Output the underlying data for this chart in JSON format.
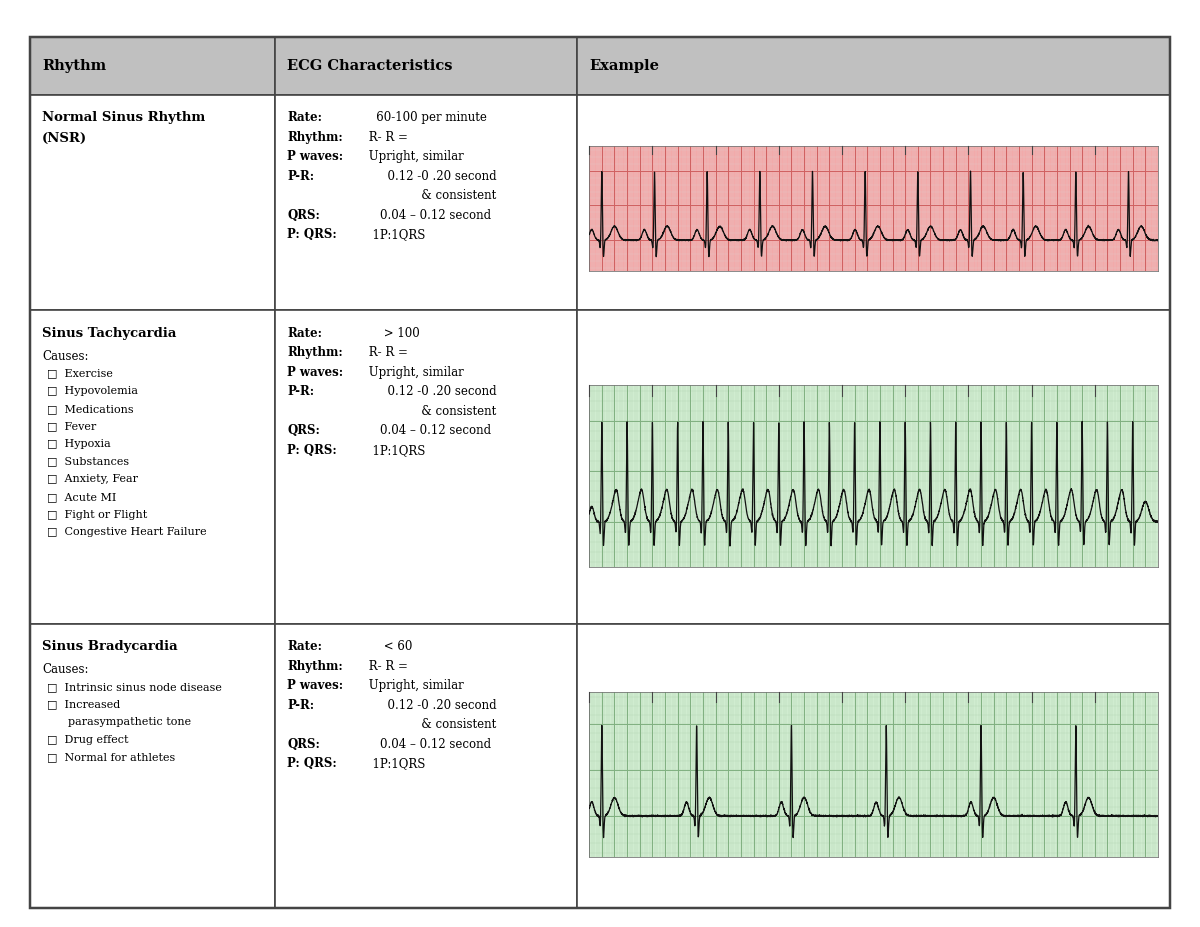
{
  "header_bg": "#c0c0c0",
  "header_text_color": "#000000",
  "col_headers": [
    "Rhythm",
    "ECG Characteristics",
    "Example"
  ],
  "table_border_color": "#444444",
  "rows": [
    {
      "rhythm_title": "Normal Sinus Rhythm\n(NSR)",
      "char_lines": [
        {
          "label": "Rate:",
          "label_bold": true,
          "value": "   60-100 per minute",
          "indent": false
        },
        {
          "label": "Rhythm:",
          "label_bold": true,
          "value": " R- R =",
          "indent": false
        },
        {
          "label": "P waves:",
          "label_bold": true,
          "value": " Upright, similar",
          "indent": false
        },
        {
          "label": "P-R:",
          "label_bold": true,
          "value": "      0.12 -0 .20 second",
          "indent": false
        },
        {
          "label": "",
          "label_bold": false,
          "value": "               & consistent",
          "indent": true
        },
        {
          "label": "QRS:",
          "label_bold": true,
          "value": "    0.04 – 0.12 second",
          "indent": false
        },
        {
          "label": "P: QRS:",
          "label_bold": true,
          "value": "  1P:1QRS",
          "indent": false
        }
      ],
      "ekg_bg": "#f2aaaa",
      "ekg_grid_major": "#d06060",
      "ekg_grid_minor": "#e8c0c0",
      "ekg_line_color": "#111111",
      "rate": 72,
      "causes": [],
      "causes_label": ""
    },
    {
      "rhythm_title": "Sinus Tachycardia",
      "char_lines": [
        {
          "label": "Rate:",
          "label_bold": true,
          "value": "     > 100",
          "indent": false
        },
        {
          "label": "Rhythm:",
          "label_bold": true,
          "value": " R- R =",
          "indent": false
        },
        {
          "label": "P waves:",
          "label_bold": true,
          "value": " Upright, similar",
          "indent": false
        },
        {
          "label": "P-R:",
          "label_bold": true,
          "value": "      0.12 -0 .20 second",
          "indent": false
        },
        {
          "label": "",
          "label_bold": false,
          "value": "               & consistent",
          "indent": true
        },
        {
          "label": "QRS:",
          "label_bold": true,
          "value": "    0.04 – 0.12 second",
          "indent": false
        },
        {
          "label": "P: QRS:",
          "label_bold": true,
          "value": "  1P:1QRS",
          "indent": false
        }
      ],
      "ekg_bg": "#d0ecd0",
      "ekg_grid_major": "#80b080",
      "ekg_grid_minor": "#b8d8b8",
      "ekg_line_color": "#111111",
      "rate": 150,
      "causes": [
        "Exercise",
        "Hypovolemia",
        "Medications",
        "Fever",
        "Hypoxia",
        "Substances",
        "Anxiety, Fear",
        "Acute MI",
        "Fight or Flight",
        "Congestive Heart Failure"
      ],
      "causes_label": "Causes:"
    },
    {
      "rhythm_title": "Sinus Bradycardia",
      "char_lines": [
        {
          "label": "Rate:",
          "label_bold": true,
          "value": "     < 60",
          "indent": false
        },
        {
          "label": "Rhythm:",
          "label_bold": true,
          "value": " R- R =",
          "indent": false
        },
        {
          "label": "P waves:",
          "label_bold": true,
          "value": " Upright, similar",
          "indent": false
        },
        {
          "label": "P-R:",
          "label_bold": true,
          "value": "      0.12 -0 .20 second",
          "indent": false
        },
        {
          "label": "",
          "label_bold": false,
          "value": "               & consistent",
          "indent": true
        },
        {
          "label": "QRS:",
          "label_bold": true,
          "value": "    0.04 – 0.12 second",
          "indent": false
        },
        {
          "label": "P: QRS:",
          "label_bold": true,
          "value": "  1P:1QRS",
          "indent": false
        }
      ],
      "ekg_bg": "#d0ecd0",
      "ekg_grid_major": "#80b080",
      "ekg_grid_minor": "#b8d8b8",
      "ekg_line_color": "#111111",
      "rate": 40,
      "causes": [
        "Intrinsic sinus node disease",
        "Increased\nparasympathetic tone",
        "Drug effect",
        "Normal for athletes"
      ],
      "causes_label": "Causes:"
    }
  ]
}
